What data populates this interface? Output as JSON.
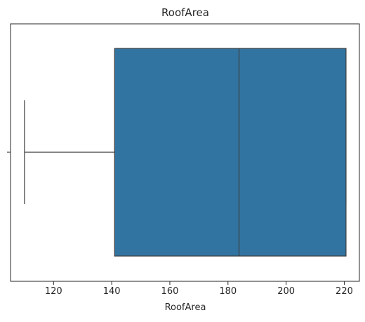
{
  "chart_data": {
    "type": "box",
    "title": "RoofArea",
    "xlabel": "RoofArea",
    "ylabel": "",
    "xlim": [
      105.2,
      225.2
    ],
    "xticks": [
      120,
      140,
      160,
      180,
      200,
      220
    ],
    "grid": false,
    "legend": "none",
    "box": {
      "min": 110.0,
      "q1": 141.0,
      "median": 183.8,
      "q3": 220.6,
      "max": 220.6
    },
    "colors": {
      "box_fill": "#3274a1",
      "line": "#3f3f3f",
      "axis": "#262626"
    }
  }
}
